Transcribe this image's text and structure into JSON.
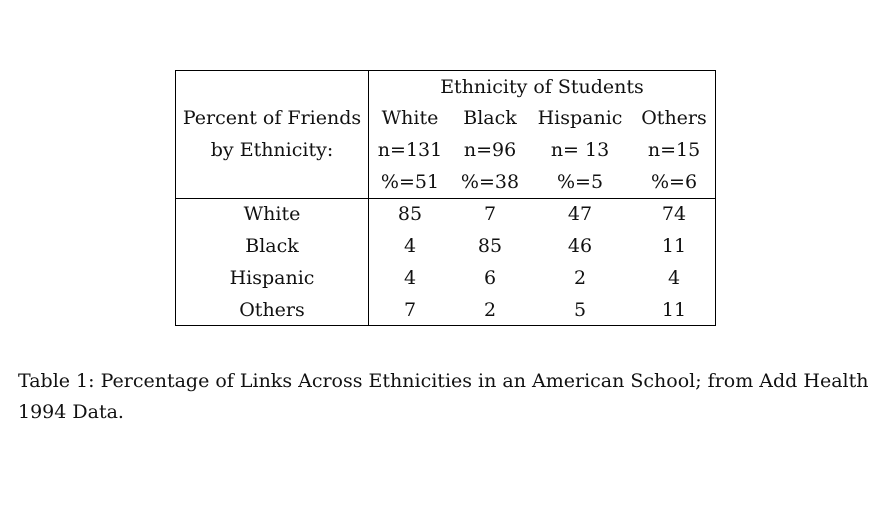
{
  "table": {
    "spanner_header": "Ethnicity of Students",
    "row_header_line1": "Percent of Friends",
    "row_header_line2": "by Ethnicity:",
    "columns": [
      {
        "name": "White",
        "n": "n=131",
        "pct": "%=51"
      },
      {
        "name": "Black",
        "n": "n=96",
        "pct": "%=38"
      },
      {
        "name": "Hispanic",
        "n": "n= 13",
        "pct": "%=5"
      },
      {
        "name": "Others",
        "n": "n=15",
        "pct": "%=6"
      }
    ],
    "rows": [
      {
        "label": "White",
        "values": [
          "85",
          "7",
          "47",
          "74"
        ]
      },
      {
        "label": "Black",
        "values": [
          "4",
          "85",
          "46",
          "11"
        ]
      },
      {
        "label": "Hispanic",
        "values": [
          "4",
          "6",
          "2",
          "4"
        ]
      },
      {
        "label": "Others",
        "values": [
          "7",
          "2",
          "5",
          "11"
        ]
      }
    ]
  },
  "caption": "Table 1:  Percentage of Links Across Ethnicities in an American School; from Add Health 1994 Data."
}
